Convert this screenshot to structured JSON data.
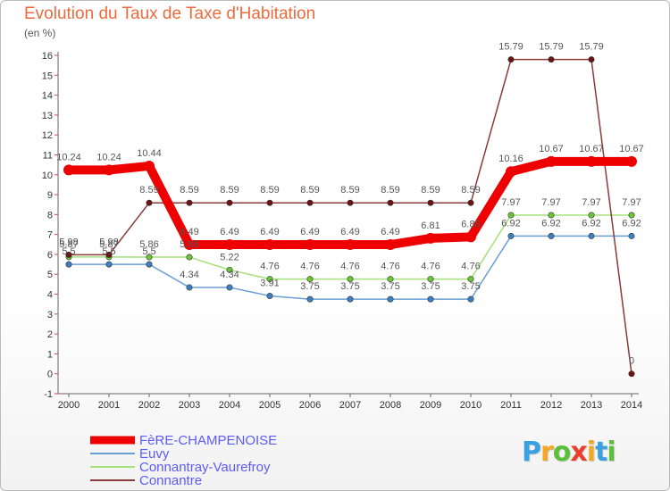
{
  "title": "Evolution du Taux de Taxe d'Habitation",
  "subtitle": "(en %)",
  "brand": {
    "text": "Proxiti",
    "letters": [
      {
        "ch": "P",
        "color": "#3aa0e0"
      },
      {
        "ch": "r",
        "color": "#f5a623"
      },
      {
        "ch": "o",
        "color": "#5bbf3a"
      },
      {
        "ch": "x",
        "color": "#e8402a"
      },
      {
        "ch": "i",
        "color": "#f5a623"
      },
      {
        "ch": "t",
        "color": "#3aa0e0"
      },
      {
        "ch": "i",
        "color": "#5bbf3a"
      }
    ]
  },
  "chart_data": {
    "type": "line",
    "x": [
      "2000",
      "2001",
      "2002",
      "2003",
      "2004",
      "2005",
      "2006",
      "2007",
      "2008",
      "2009",
      "2010",
      "2011",
      "2012",
      "2013",
      "2014"
    ],
    "ylim": [
      -1,
      16
    ],
    "yticks": [
      -1,
      0,
      1,
      2,
      3,
      4,
      5,
      6,
      7,
      8,
      9,
      10,
      11,
      12,
      13,
      14,
      15,
      16
    ],
    "grid": false,
    "legend_position": "bottom-left",
    "series": [
      {
        "name": "FèRE-CHAMPENOISE",
        "color": "#ee0000",
        "marker": "#ee0000",
        "width": 10,
        "values": [
          10.24,
          10.24,
          10.44,
          6.49,
          6.49,
          6.49,
          6.49,
          6.49,
          6.49,
          6.81,
          6.88,
          10.16,
          10.67,
          10.67,
          10.67
        ],
        "labels": [
          "10.24",
          "10.24",
          "10.44",
          "6.49",
          "6.49",
          "6.49",
          "6.49",
          "6.49",
          "6.49",
          "6.81",
          "6.88",
          "10.16",
          "10.67",
          "10.67",
          "10.67"
        ]
      },
      {
        "name": "Euvy",
        "color": "#6a9fd4",
        "marker": "#3d7fc2",
        "width": 1.5,
        "values": [
          5.5,
          5.5,
          5.5,
          4.34,
          4.34,
          3.91,
          3.75,
          3.75,
          3.75,
          3.75,
          3.75,
          6.92,
          6.92,
          6.92,
          6.92
        ],
        "labels": [
          "5.5",
          "5.5",
          "5.5",
          "4.34",
          "4.34",
          "3.91",
          "3.75",
          "3.75",
          "3.75",
          "3.75",
          "3.75",
          "6.92",
          "6.92",
          "6.92",
          "6.92"
        ]
      },
      {
        "name": "Connantray-Vaurefroy",
        "color": "#a6e07a",
        "marker": "#6cc43a",
        "width": 1.5,
        "values": [
          5.87,
          5.87,
          5.86,
          5.86,
          5.22,
          4.76,
          4.76,
          4.76,
          4.76,
          4.76,
          4.76,
          7.97,
          7.97,
          7.97,
          7.97
        ],
        "labels": [
          "5.87",
          "5.87",
          "5.86",
          "5.86",
          "5.22",
          "4.76",
          "4.76",
          "4.76",
          "4.76",
          "4.76",
          "4.76",
          "7.97",
          "7.97",
          "7.97",
          "7.97"
        ]
      },
      {
        "name": "Connantre",
        "color": "#8a3a3a",
        "marker": "#6a1414",
        "width": 1.5,
        "values": [
          5.98,
          5.98,
          8.59,
          8.59,
          8.59,
          8.59,
          8.59,
          8.59,
          8.59,
          8.59,
          8.59,
          15.79,
          15.79,
          15.79,
          0
        ],
        "labels": [
          "5.98",
          "5.98",
          "8.59",
          "8.59",
          "8.59",
          "8.59",
          "8.59",
          "8.59",
          "8.59",
          "8.59",
          "8.59",
          "15.79",
          "15.79",
          "15.79",
          "0"
        ]
      }
    ]
  }
}
